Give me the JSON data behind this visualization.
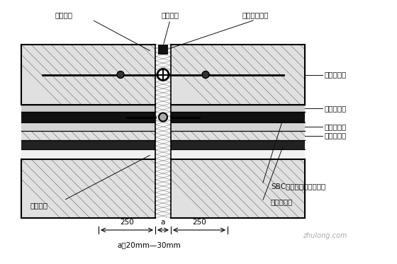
{
  "bg_color": "#ffffff",
  "line_color": "#000000",
  "hatch_color": "#000000",
  "concrete_bg": "#e8e8e8",
  "labels": {
    "top_left1": "填缝材料",
    "top_center": "嵌缝材料",
    "top_right": "中埋式止水带",
    "right1": "混凝土结构",
    "right2": "沙浆保护层",
    "right3": "沙浆找平层",
    "right4": "混凝土垫层",
    "bottom_left1": "填充材料",
    "bottom_right1": "SBC高分子复合防水卷材",
    "bottom_right2": "卷材附加层",
    "dim_left": "250",
    "dim_a": "a",
    "dim_right": "250",
    "note": "a：20mm—30mm"
  },
  "watermark": "zhulong.com"
}
